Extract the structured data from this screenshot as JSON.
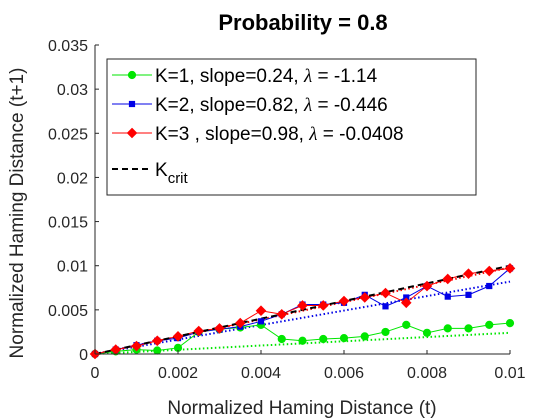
{
  "chart_data": {
    "type": "line",
    "title": "Probability = 0.8",
    "xlabel": "Normalized Haming Distance (t)",
    "ylabel": "Normalized Haming Distance (t+1)",
    "xlim": [
      0,
      0.01
    ],
    "ylim": [
      0,
      0.035
    ],
    "xticks": [
      0,
      0.002,
      0.004,
      0.006,
      0.008,
      0.01
    ],
    "xtick_labels": [
      "0",
      "0.002",
      "0.004",
      "0.006",
      "0.008",
      "0.01"
    ],
    "yticks": [
      0,
      0.005,
      0.01,
      0.015,
      0.02,
      0.025,
      0.03,
      0.035
    ],
    "ytick_labels": [
      "0",
      "0.005",
      "0.01",
      "0.015",
      "0.02",
      "0.025",
      "0.03",
      "0.035"
    ],
    "grid": false,
    "legend_position": "top-left",
    "series": [
      {
        "name": "K=1, slope=0.24, λ = -1.14",
        "legend_prefix": "K=1, slope=0.24, ",
        "legend_lambda": "λ",
        "legend_suffix": " = -1.14",
        "color": "#00e600",
        "marker": "circle",
        "x": [
          0,
          0.0005,
          0.001,
          0.0015,
          0.002,
          0.0025,
          0.003,
          0.0035,
          0.004,
          0.0045,
          0.005,
          0.0055,
          0.006,
          0.0065,
          0.007,
          0.0075,
          0.008,
          0.0085,
          0.009,
          0.0095,
          0.01
        ],
        "y": [
          0,
          0.0003,
          0.0005,
          0.0004,
          0.0007,
          0.0025,
          0.0028,
          0.003,
          0.0033,
          0.0017,
          0.0015,
          0.0017,
          0.0018,
          0.002,
          0.0025,
          0.0033,
          0.0024,
          0.0029,
          0.0029,
          0.0033,
          0.0035
        ],
        "fit_slope": 0.24
      },
      {
        "name": "K=2, slope=0.82, λ = -0.446",
        "legend_prefix": "K=2, slope=0.82, ",
        "legend_lambda": "λ",
        "legend_suffix": " = -0.446",
        "color": "#0000e6",
        "marker": "square",
        "x": [
          0,
          0.0005,
          0.001,
          0.0015,
          0.002,
          0.0025,
          0.003,
          0.0035,
          0.004,
          0.0045,
          0.005,
          0.0055,
          0.006,
          0.0065,
          0.007,
          0.0075,
          0.008,
          0.0085,
          0.009,
          0.0095,
          0.01
        ],
        "y": [
          0,
          0.0005,
          0.001,
          0.0015,
          0.0018,
          0.0025,
          0.0028,
          0.0031,
          0.0037,
          0.0045,
          0.0056,
          0.0056,
          0.0058,
          0.0067,
          0.0054,
          0.0064,
          0.0077,
          0.0065,
          0.0067,
          0.0077,
          0.0097
        ],
        "fit_slope": 0.82
      },
      {
        "name": "K=3 , slope=0.98, λ = -0.0408",
        "legend_prefix": "K=3 , slope=0.98, ",
        "legend_lambda": "λ",
        "legend_suffix": " = -0.0408",
        "color": "#ff0000",
        "marker": "diamond",
        "x": [
          0,
          0.0005,
          0.001,
          0.0015,
          0.002,
          0.0025,
          0.003,
          0.0035,
          0.004,
          0.0045,
          0.005,
          0.0055,
          0.006,
          0.0065,
          0.007,
          0.0075,
          0.008,
          0.0085,
          0.009,
          0.0095,
          0.01
        ],
        "y": [
          0,
          0.0005,
          0.0009,
          0.0015,
          0.002,
          0.0026,
          0.0029,
          0.0035,
          0.0049,
          0.0045,
          0.0055,
          0.0055,
          0.006,
          0.0064,
          0.0069,
          0.0058,
          0.0077,
          0.0085,
          0.0091,
          0.0094,
          0.0097
        ],
        "fit_slope": 0.98
      },
      {
        "name": "K_crit",
        "legend_main": "K",
        "legend_sub": "crit",
        "color": "#000000",
        "line_style": "dashed",
        "x": [
          0,
          0.01
        ],
        "y": [
          0,
          0.01
        ]
      }
    ]
  }
}
